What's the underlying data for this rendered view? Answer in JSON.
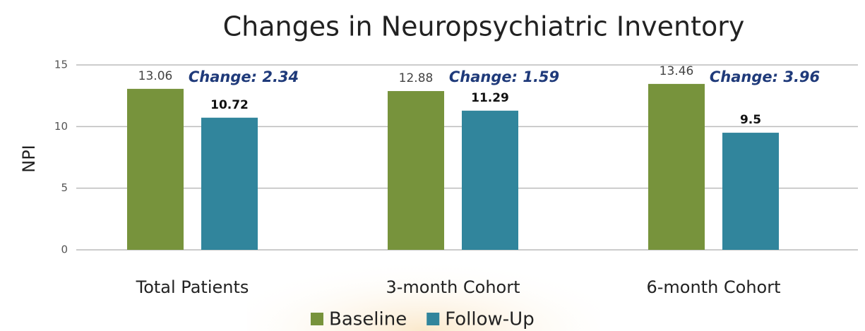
{
  "chart_data": {
    "type": "bar",
    "title": "Changes in Neuropsychiatric Inventory",
    "ylabel": "NPI",
    "categories": [
      "Total Patients",
      "3-month Cohort",
      "6-month Cohort"
    ],
    "series": [
      {
        "name": "Baseline",
        "color": "#77933c",
        "values": [
          13.06,
          12.88,
          13.46
        ]
      },
      {
        "name": "Follow-Up",
        "color": "#31859c",
        "values": [
          10.72,
          11.29,
          9.5
        ]
      }
    ],
    "annotations": [
      "Change: 2.34",
      "Change: 1.59",
      "Change: 3.96"
    ],
    "ylim": [
      0,
      15
    ],
    "yticks": [
      0,
      5,
      10,
      15
    ],
    "grid": true,
    "legend": "bottom"
  }
}
